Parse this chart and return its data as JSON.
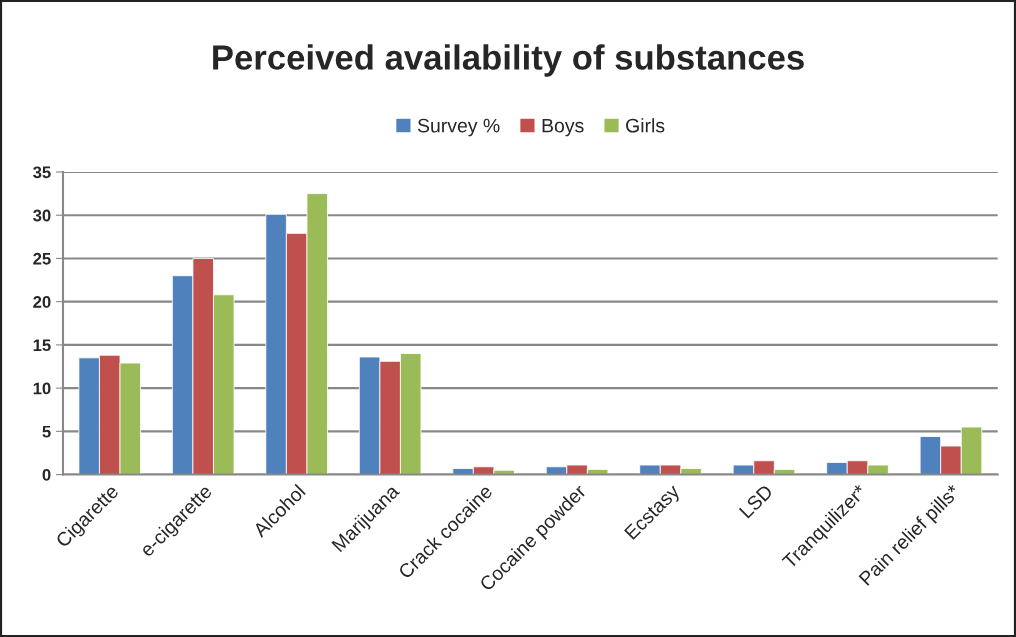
{
  "chart_data": {
    "type": "bar",
    "title": "Perceived availability of substances",
    "categories": [
      "Cigarette",
      "e-cigarette",
      "Alcohol",
      "Marijuana",
      "Crack cocaine",
      "Cocaine powder",
      "Ecstasy",
      "LSD",
      "Tranquilizer*",
      "Pain relief pills*"
    ],
    "series": [
      {
        "name": "Survey %",
        "color": "#4f81bd",
        "values": [
          13.5,
          23.0,
          30.1,
          13.6,
          0.7,
          0.9,
          1.1,
          1.1,
          1.4,
          4.4
        ]
      },
      {
        "name": "Boys",
        "color": "#c0504d",
        "values": [
          13.8,
          25.0,
          27.9,
          13.1,
          0.9,
          1.1,
          1.1,
          1.6,
          1.6,
          3.3
        ]
      },
      {
        "name": "Girls",
        "color": "#9bbb59",
        "values": [
          12.9,
          20.8,
          32.5,
          14.0,
          0.5,
          0.6,
          0.7,
          0.6,
          1.1,
          5.5
        ]
      }
    ],
    "ylim": [
      0,
      35
    ],
    "yticks": [
      0,
      5,
      10,
      15,
      20,
      25,
      30,
      35
    ],
    "grid": "y",
    "legend": "top"
  }
}
